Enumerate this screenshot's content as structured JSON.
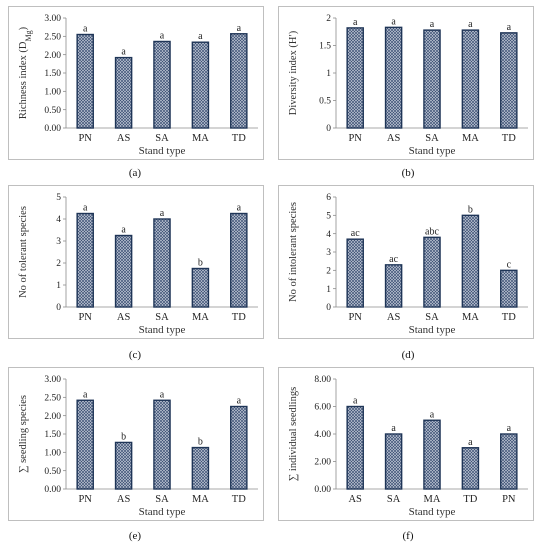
{
  "chart_data": [
    {
      "id": "a",
      "panel_label": "(a)",
      "type": "bar",
      "categories": [
        "PN",
        "AS",
        "SA",
        "MA",
        "TD"
      ],
      "values": [
        2.55,
        1.92,
        2.36,
        2.34,
        2.57
      ],
      "letters": [
        "a",
        "a",
        "a",
        "a",
        "a"
      ],
      "ylabel": "Richness index (D",
      "ylabel_sub": "Mg",
      "ylabel_end": ")",
      "xlabel": "Stand type",
      "ylim": [
        0,
        3
      ],
      "yticks": [
        "0.00",
        "0.50",
        "1.00",
        "1.50",
        "2.00",
        "2.50",
        "3.00"
      ]
    },
    {
      "id": "b",
      "panel_label": "(b)",
      "type": "bar",
      "categories": [
        "PN",
        "AS",
        "SA",
        "MA",
        "TD"
      ],
      "values": [
        1.82,
        1.83,
        1.78,
        1.78,
        1.73
      ],
      "letters": [
        "a",
        "a",
        "a",
        "a",
        "a"
      ],
      "ylabel": "Diversity index (H′)",
      "xlabel": "Stand type",
      "ylim": [
        0,
        2
      ],
      "yticks": [
        "0",
        "0.5",
        "1",
        "1.5",
        "2"
      ]
    },
    {
      "id": "c",
      "panel_label": "(c)",
      "type": "bar",
      "categories": [
        "PN",
        "AS",
        "SA",
        "MA",
        "TD"
      ],
      "values": [
        4.25,
        3.25,
        4.0,
        1.75,
        4.25
      ],
      "letters": [
        "a",
        "a",
        "a",
        "b",
        "a"
      ],
      "ylabel": "No of tolerant species",
      "xlabel": "Stand type",
      "ylim": [
        0,
        5
      ],
      "yticks": [
        "0",
        "1",
        "2",
        "3",
        "4",
        "5"
      ]
    },
    {
      "id": "d",
      "panel_label": "(d)",
      "type": "bar",
      "categories": [
        "PN",
        "AS",
        "SA",
        "MA",
        "TD"
      ],
      "values": [
        3.7,
        2.3,
        3.8,
        5.0,
        2.0
      ],
      "letters": [
        "ac",
        "ac",
        "abc",
        "b",
        "c"
      ],
      "ylabel": "No of intolerant species",
      "xlabel": "Stand type",
      "ylim": [
        0,
        6
      ],
      "yticks": [
        "0",
        "1",
        "2",
        "3",
        "4",
        "5",
        "6"
      ]
    },
    {
      "id": "e",
      "panel_label": "(e)",
      "type": "bar",
      "categories": [
        "PN",
        "AS",
        "SA",
        "MA",
        "TD"
      ],
      "values": [
        2.42,
        1.27,
        2.42,
        1.13,
        2.25
      ],
      "letters": [
        "a",
        "b",
        "a",
        "b",
        "a"
      ],
      "ylabel": "∑ seedling species",
      "xlabel": "Stand type",
      "ylim": [
        0,
        3
      ],
      "yticks": [
        "0.00",
        "0.50",
        "1.00",
        "1.50",
        "2.00",
        "2.50",
        "3.00"
      ]
    },
    {
      "id": "f",
      "panel_label": "(f)",
      "type": "bar",
      "categories": [
        "AS",
        "SA",
        "MA",
        "TD",
        "PN"
      ],
      "values": [
        6.0,
        4.0,
        5.0,
        3.0,
        4.0
      ],
      "letters": [
        "a",
        "a",
        "a",
        "a",
        "a"
      ],
      "ylabel": "∑ individual seedlings",
      "xlabel": "Stand type",
      "ylim": [
        0,
        8
      ],
      "yticks": [
        "0.00",
        "2.00",
        "4.00",
        "6.00",
        "8.00"
      ]
    }
  ]
}
